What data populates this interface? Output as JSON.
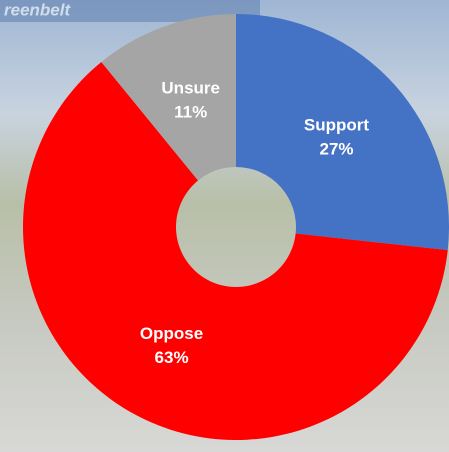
{
  "background": {
    "sign_text": "reenbelt"
  },
  "chart_data": {
    "type": "donut",
    "categories": [
      "Support",
      "Oppose",
      "Unsure"
    ],
    "values": [
      27,
      63,
      11
    ],
    "value_labels": [
      "27%",
      "63%",
      "11%"
    ],
    "colors": [
      "#4472c4",
      "#ff0000",
      "#a5a5a5"
    ]
  }
}
